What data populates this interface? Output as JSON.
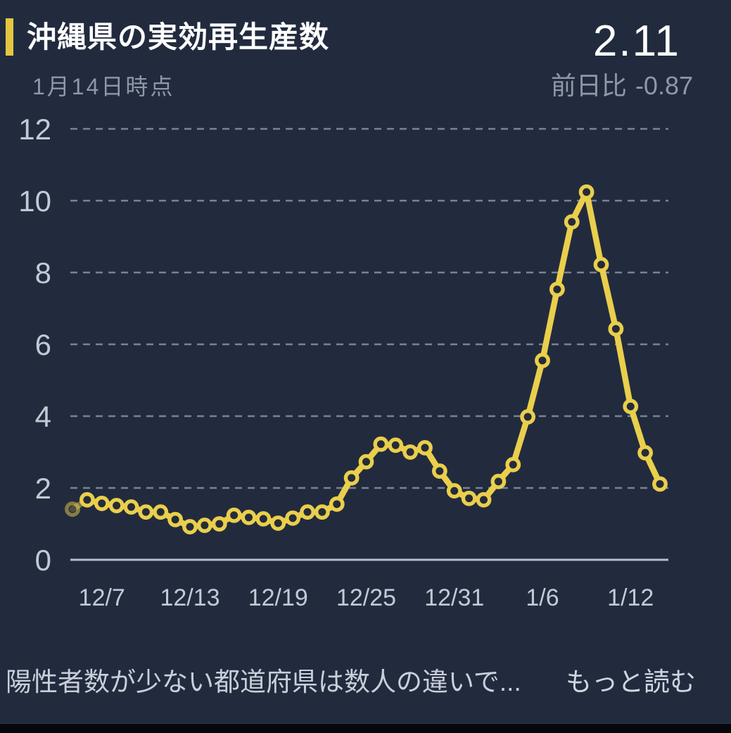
{
  "header": {
    "title": "沖縄県の実効再生産数",
    "as_of": "1月14日時点",
    "current_value": "2.11",
    "delta_label": "前日比",
    "delta_value": "-0.87"
  },
  "footer": {
    "note": "陽性者数が少ない都道府県は数人の違いで...",
    "read_more": "もっと読む"
  },
  "style": {
    "background": "#222b3e",
    "accent_color": "#e4c640",
    "line_color": "#e9cf4c",
    "marker_fill": "#262b39",
    "grid_color": "rgba(152,160,176,0.75)",
    "axis_color": "#b6bcc8",
    "text_primary": "#ffffff",
    "text_muted": "#8f97a8",
    "text_axis": "#c3c9d5",
    "text_footer": "#c9cfda",
    "bottom_bar": "#06080c"
  },
  "chart_data": {
    "type": "line",
    "title": "沖縄県の実効再生産数",
    "subtitle": "1月14日時点",
    "x": [
      "12/5",
      "12/6",
      "12/7",
      "12/8",
      "12/9",
      "12/10",
      "12/11",
      "12/12",
      "12/13",
      "12/14",
      "12/15",
      "12/16",
      "12/17",
      "12/18",
      "12/19",
      "12/20",
      "12/21",
      "12/22",
      "12/23",
      "12/24",
      "12/25",
      "12/26",
      "12/27",
      "12/28",
      "12/29",
      "12/30",
      "12/31",
      "1/1",
      "1/2",
      "1/3",
      "1/4",
      "1/5",
      "1/6",
      "1/7",
      "1/8",
      "1/9",
      "1/10",
      "1/11",
      "1/12",
      "1/13",
      "1/14"
    ],
    "values": [
      1.41,
      1.67,
      1.57,
      1.51,
      1.47,
      1.33,
      1.33,
      1.12,
      0.92,
      0.96,
      1.0,
      1.24,
      1.18,
      1.14,
      1.02,
      1.16,
      1.33,
      1.33,
      1.55,
      2.28,
      2.73,
      3.22,
      3.19,
      3.0,
      3.12,
      2.47,
      1.92,
      1.71,
      1.67,
      2.18,
      2.65,
      3.98,
      5.55,
      7.53,
      9.41,
      10.24,
      8.22,
      6.43,
      4.27,
      2.98,
      2.11
    ],
    "x_ticks": [
      {
        "label": "12/7",
        "index": 2
      },
      {
        "label": "12/13",
        "index": 8
      },
      {
        "label": "12/19",
        "index": 14
      },
      {
        "label": "12/25",
        "index": 20
      },
      {
        "label": "12/31",
        "index": 26
      },
      {
        "label": "1/6",
        "index": 32
      },
      {
        "label": "1/12",
        "index": 38
      }
    ],
    "y_ticks": [
      0,
      2,
      4,
      6,
      8,
      10,
      12
    ],
    "y_gridlines": [
      2,
      4,
      6,
      8,
      10,
      12
    ],
    "ylim": [
      0,
      12
    ],
    "grid": "horizontal-dashed",
    "legend": "none",
    "marker": "open-circle",
    "first_point_faded": true,
    "latest_value": 2.11,
    "day_over_day_change": -0.87
  }
}
